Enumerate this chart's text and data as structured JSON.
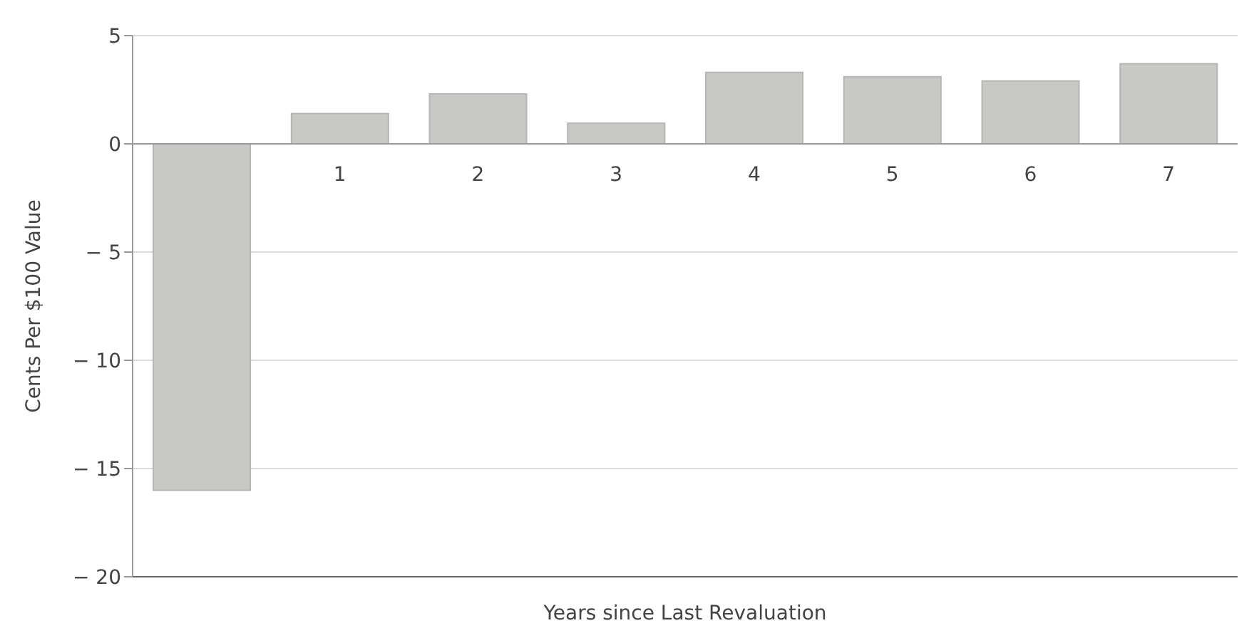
{
  "chart_data": {
    "type": "bar",
    "xlabel": "Years since Last Revaluation",
    "ylabel": "Cents Per $100 Value",
    "categories": [
      null,
      "1",
      "2",
      "3",
      "4",
      "5",
      "6",
      "7"
    ],
    "values": [
      -16.0,
      1.4,
      2.3,
      0.95,
      3.3,
      3.1,
      2.9,
      3.7
    ],
    "color": "#c8c8c6",
    "ylim": [
      -20,
      5
    ],
    "yticks": [
      {
        "value": 5,
        "label": "5"
      },
      {
        "value": 0,
        "label": "0"
      },
      {
        "value": -5,
        "label": "− 5"
      },
      {
        "value": -10,
        "label": "− 10"
      },
      {
        "value": -15,
        "label": "− 15"
      },
      {
        "value": -20,
        "label": "− 20"
      }
    ],
    "grid": "y"
  }
}
